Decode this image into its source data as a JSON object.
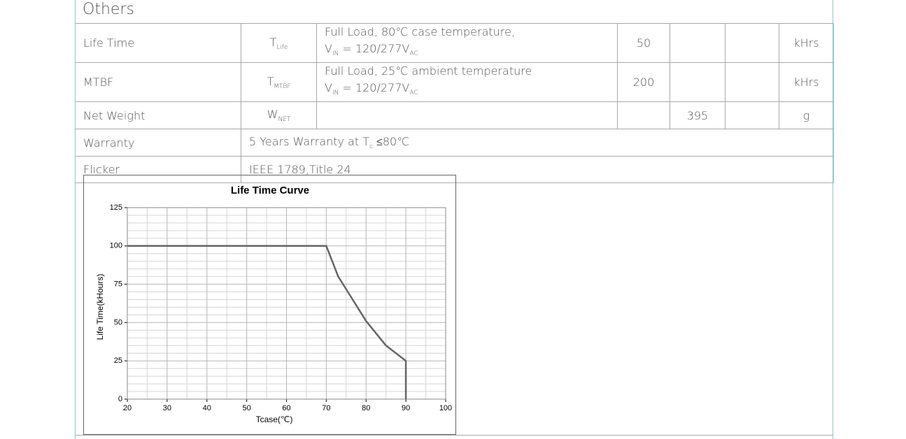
{
  "section": {
    "title": "Others"
  },
  "table": {
    "rows": [
      {
        "parameter": "Life Time",
        "symbol": [
          "T",
          "Life"
        ],
        "conditions": {
          "line1": "Full Load, 80℃  case temperature,",
          "line2": [
            "V",
            "IN",
            " = 120/277V",
            "AC"
          ]
        },
        "min": 50,
        "unit": "kHrs"
      },
      {
        "parameter": "MTBF",
        "symbol": [
          "T",
          "MTBF"
        ],
        "conditions": {
          "line1": "Full Load, 25℃  ambient temperature",
          "line2": [
            "V",
            "IN",
            " = 120/277V",
            "AC"
          ]
        },
        "min": 200,
        "unit": "kHrs"
      },
      {
        "parameter": "Net Weight",
        "symbol": [
          "W",
          "NET"
        ],
        "typ": 395,
        "unit": "g"
      },
      {
        "parameter": "Warranty",
        "text": [
          "5 Years Warranty at T",
          "c",
          " ≤80℃"
        ]
      },
      {
        "parameter": "Flicker",
        "text": [
          "IEEE 1789,Title 24"
        ]
      }
    ]
  },
  "chart_data": {
    "type": "line",
    "title": "Life Time Curve",
    "xlabel": "Tcase(℃)",
    "ylabel": "Life Time(kHours)",
    "x": [
      20,
      70,
      73,
      80,
      85,
      90,
      90
    ],
    "series": [
      {
        "color": "#666666",
        "values": [
          100,
          100,
          80,
          51,
          35,
          25,
          0
        ]
      }
    ],
    "xlim": [
      20,
      100
    ],
    "ylim": [
      0,
      125
    ],
    "xticks": [
      20,
      30,
      40,
      50,
      60,
      70,
      80,
      90,
      100
    ],
    "yticks": [
      0,
      25,
      50,
      75,
      100,
      125
    ],
    "grid": true
  }
}
